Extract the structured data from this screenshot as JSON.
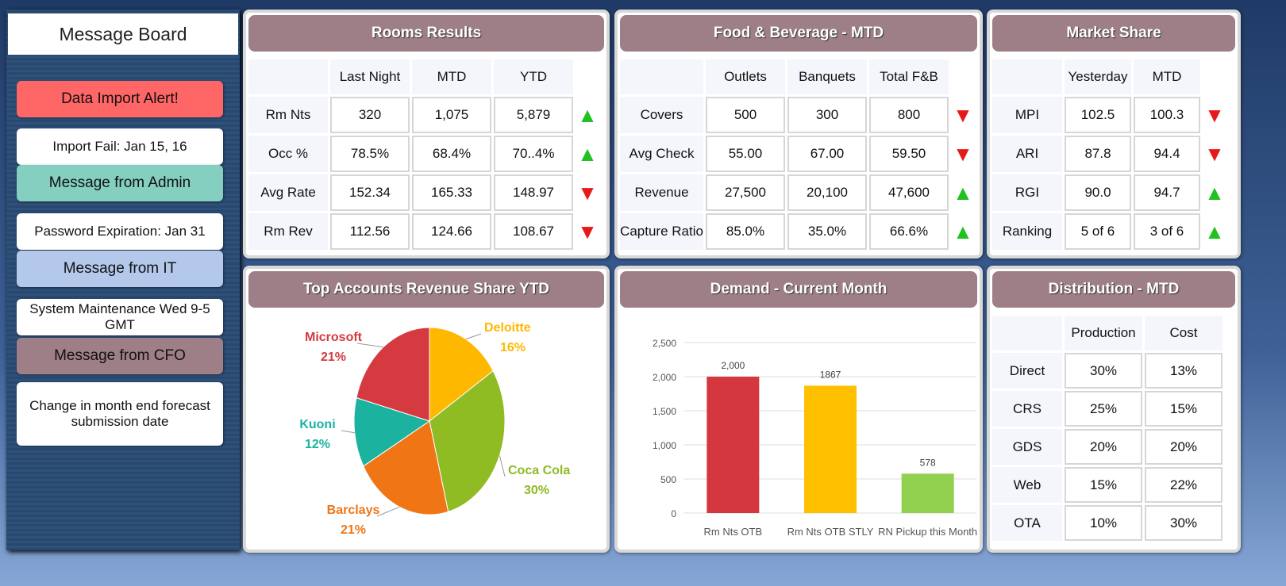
{
  "message_board": {
    "title": "Message Board",
    "messages": [
      {
        "heading": "Data Import Alert!",
        "heading_color": "#ff6666",
        "body": "Import Fail: Jan 15, 16"
      },
      {
        "heading": "Message from Admin",
        "heading_color": "#84cfc0",
        "body": "Password Expiration: Jan 31"
      },
      {
        "heading": "Message from IT",
        "heading_color": "#b4c8ec",
        "body": "System Maintenance Wed 9-5 GMT"
      },
      {
        "heading": "Message from CFO",
        "heading_color": "#9e7f87",
        "body": "Change in month end forecast submission date"
      }
    ]
  },
  "rooms": {
    "title": "Rooms Results",
    "columns": [
      "Last Night",
      "MTD",
      "YTD"
    ],
    "rows": [
      {
        "label": "Rm Nts",
        "values": [
          "320",
          "1,075",
          "5,879"
        ],
        "trend": "up"
      },
      {
        "label": "Occ %",
        "values": [
          "78.5%",
          "68.4%",
          "70..4%"
        ],
        "trend": "up"
      },
      {
        "label": "Avg Rate",
        "values": [
          "152.34",
          "165.33",
          "148.97"
        ],
        "trend": "down"
      },
      {
        "label": "Rm Rev",
        "values": [
          "112.56",
          "124.66",
          "108.67"
        ],
        "trend": "down"
      }
    ]
  },
  "fnb": {
    "title": "Food & Beverage - MTD",
    "columns": [
      "Outlets",
      "Banquets",
      "Total F&B"
    ],
    "rows": [
      {
        "label": "Covers",
        "values": [
          "500",
          "300",
          "800"
        ],
        "trend": "down"
      },
      {
        "label": "Avg Check",
        "values": [
          "55.00",
          "67.00",
          "59.50"
        ],
        "trend": "down"
      },
      {
        "label": "Revenue",
        "values": [
          "27,500",
          "20,100",
          "47,600"
        ],
        "trend": "up"
      },
      {
        "label": "Capture Ratio",
        "values": [
          "85.0%",
          "35.0%",
          "66.6%"
        ],
        "trend": "up"
      }
    ]
  },
  "market": {
    "title": "Market Share",
    "columns": [
      "Yesterday",
      "MTD"
    ],
    "rows": [
      {
        "label": "MPI",
        "values": [
          "102.5",
          "100.3"
        ],
        "trend": "down"
      },
      {
        "label": "ARI",
        "values": [
          "87.8",
          "94.4"
        ],
        "trend": "down"
      },
      {
        "label": "RGI",
        "values": [
          "90.0",
          "94.7"
        ],
        "trend": "up"
      },
      {
        "label": "Ranking",
        "values": [
          "5 of 6",
          "3 of 6"
        ],
        "trend": "up"
      }
    ]
  },
  "distribution": {
    "title": "Distribution - MTD",
    "columns": [
      "Production",
      "Cost"
    ],
    "rows": [
      {
        "label": "Direct",
        "values": [
          "30%",
          "13%"
        ]
      },
      {
        "label": "CRS",
        "values": [
          "25%",
          "15%"
        ]
      },
      {
        "label": "GDS",
        "values": [
          "20%",
          "20%"
        ]
      },
      {
        "label": "Web",
        "values": [
          "15%",
          "22%"
        ]
      },
      {
        "label": "OTA",
        "values": [
          "10%",
          "30%"
        ]
      }
    ]
  },
  "chart_data": [
    {
      "type": "pie",
      "title": "Top Accounts Revenue Share YTD",
      "slices": [
        {
          "label": "Deloitte",
          "value": 16,
          "display": "16%",
          "color": "#ffb800"
        },
        {
          "label": "Coca Cola",
          "value": 30,
          "display": "30%",
          "color": "#8fbb23"
        },
        {
          "label": "Barclays",
          "value": 21,
          "display": "21%",
          "color": "#f07515"
        },
        {
          "label": "Kuoni",
          "value": 12,
          "display": "12%",
          "color": "#1bb3a0"
        },
        {
          "label": "Microsoft",
          "value": 21,
          "display": "21%",
          "color": "#d43a40"
        }
      ]
    },
    {
      "type": "bar",
      "title": "Demand - Current Month",
      "categories": [
        "Rm Nts OTB",
        "Rm Nts OTB STLY",
        "RN Pickup this Month"
      ],
      "values": [
        2000,
        1867,
        578
      ],
      "data_labels": [
        "2,000",
        "1867",
        "578"
      ],
      "colors": [
        "#d4373d",
        "#ffc000",
        "#92d050"
      ],
      "ylim": [
        0,
        2500
      ],
      "yticks": [
        "0",
        "500",
        "1,000",
        "1,500",
        "2,000",
        "2,500"
      ],
      "grid": true
    }
  ]
}
